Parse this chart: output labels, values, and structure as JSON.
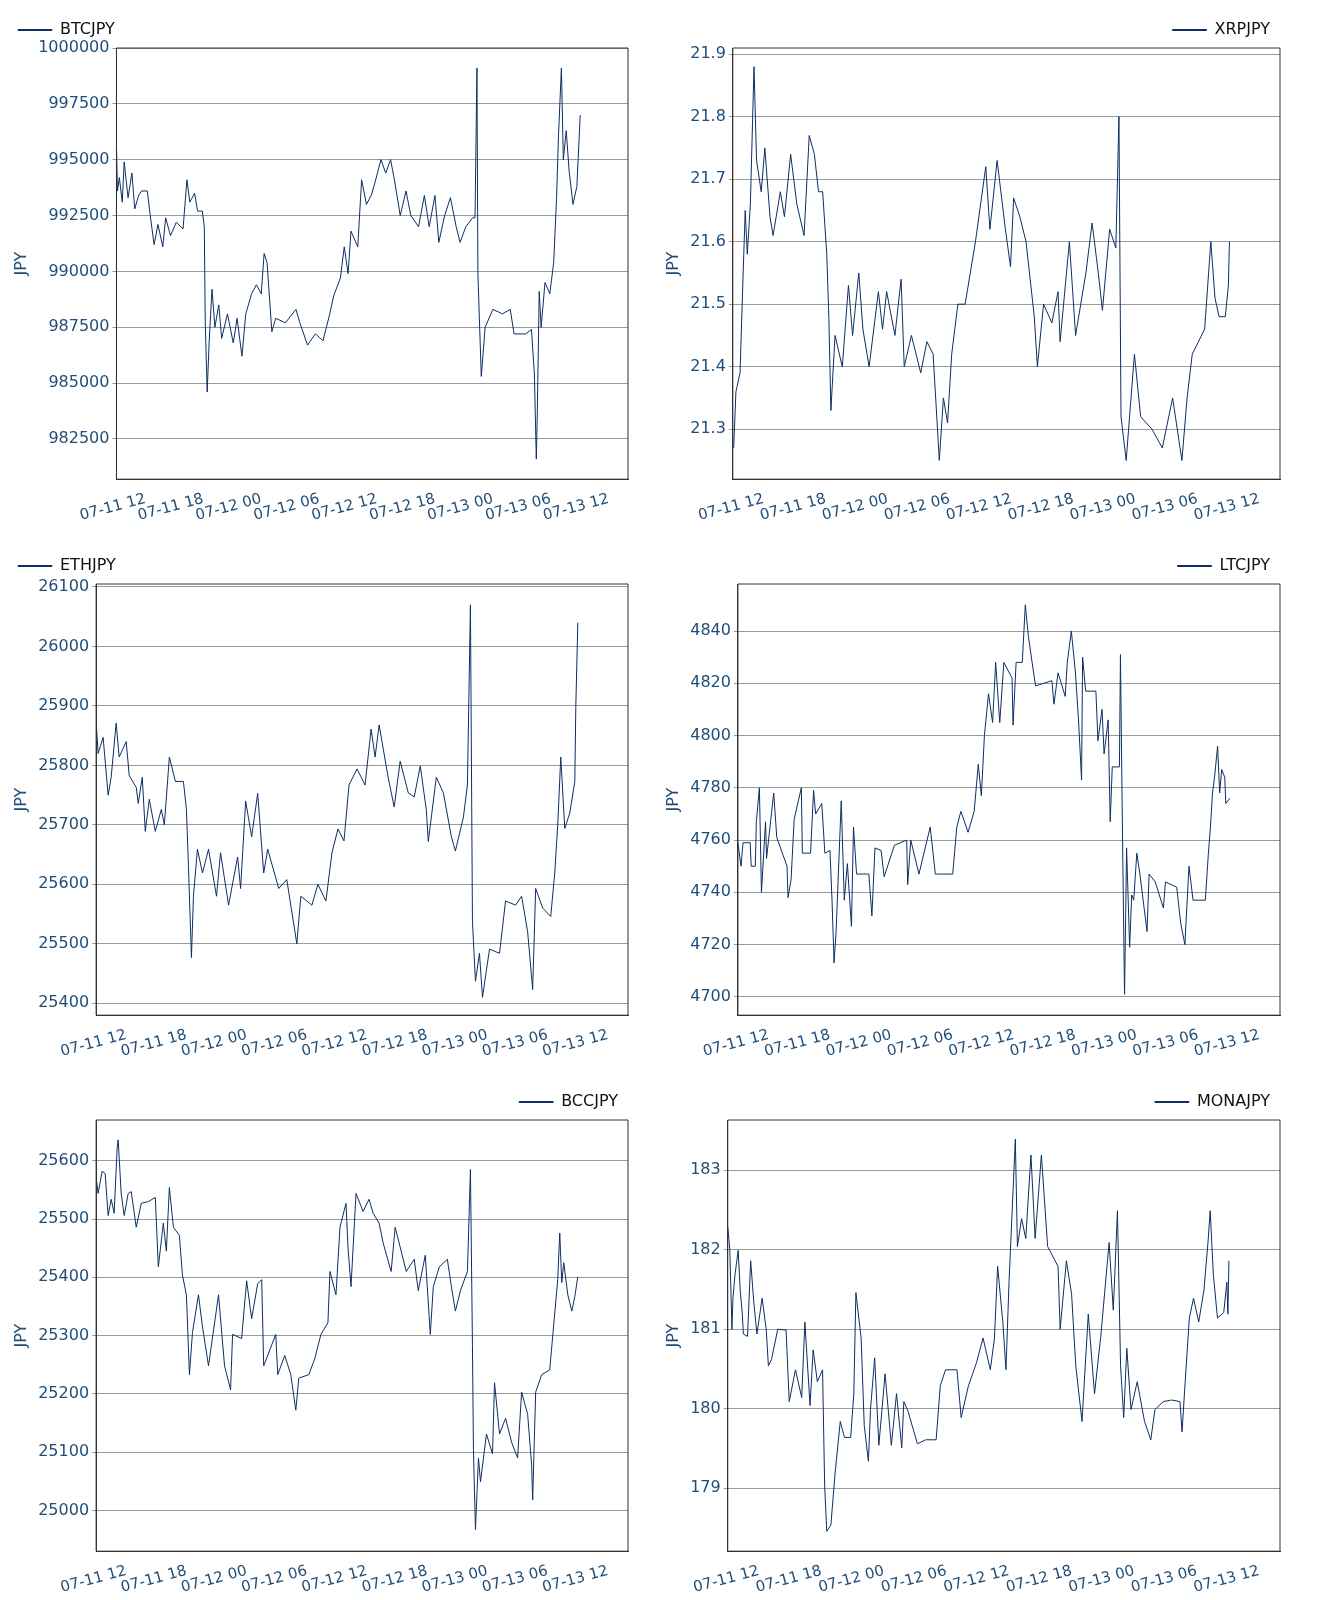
{
  "chart_data": [
    {
      "type": "line",
      "ylabel": "JPY",
      "xlim": [
        "--07-11T09:00",
        "--07-13T14:00"
      ],
      "xticks": [
        {
          "value": "--07-11T12:00",
          "label": "07-11 12"
        },
        {
          "value": "--07-11T18:00",
          "label": "07-11 18"
        },
        {
          "value": "--07-12T00:00",
          "label": "07-12 00"
        },
        {
          "value": "--07-12T06:00",
          "label": "07-12 06"
        },
        {
          "value": "--07-12T12:00",
          "label": "07-12 12"
        },
        {
          "value": "--07-12T18:00",
          "label": "07-12 18"
        },
        {
          "value": "--07-13T00:00",
          "label": "07-13 00"
        },
        {
          "value": "--07-13T06:00",
          "label": "07-13 06"
        },
        {
          "value": "--07-13T12:00",
          "label": "07-13 12"
        }
      ],
      "ylim": [
        980700,
        1000000
      ],
      "yticks": [
        982500,
        985000,
        987500,
        990000,
        992500,
        995000,
        997500,
        1000000
      ],
      "grid": "y",
      "legend": "top left",
      "x": [
        "--07-11T09:00",
        "--07-11T09:06",
        "--07-11T09:18",
        "--07-11T09:36",
        "--07-11T09:48",
        "--07-11T10:12",
        "--07-11T10:36",
        "--07-11T10:54",
        "--07-11T11:18",
        "--07-11T11:36",
        "--07-11T12:12",
        "--07-11T12:30",
        "--07-11T12:54",
        "--07-11T13:18",
        "--07-11T13:48",
        "--07-11T14:06",
        "--07-11T14:36",
        "--07-11T15:12",
        "--07-11T15:54",
        "--07-11T16:18",
        "--07-11T16:36",
        "--07-11T17:06",
        "--07-11T17:24",
        "--07-11T17:54",
        "--07-11T18:06",
        "--07-11T18:12",
        "--07-11T18:24",
        "--07-11T18:36",
        "--07-11T18:54",
        "--07-11T19:12",
        "--07-11T19:36",
        "--07-11T19:54",
        "--07-11T20:30",
        "--07-11T21:06",
        "--07-11T21:30",
        "--07-11T22:00",
        "--07-11T22:24",
        "--07-11T23:00",
        "--07-11T23:30",
        "--07-12T00:00",
        "--07-12T00:18",
        "--07-12T00:36",
        "--07-12T01:06",
        "--07-12T01:30",
        "--07-12T02:30",
        "--07-12T03:36",
        "--07-12T04:00",
        "--07-12T04:48",
        "--07-12T05:36",
        "--07-12T06:24",
        "--07-12T07:06",
        "--07-12T07:30",
        "--07-12T08:12",
        "--07-12T08:36",
        "--07-12T09:00",
        "--07-12T09:18",
        "--07-12T10:00",
        "--07-12T10:24",
        "--07-12T10:54",
        "--07-12T11:24",
        "--07-12T11:48",
        "--07-12T12:24",
        "--07-12T12:54",
        "--07-12T13:24",
        "--07-12T13:48",
        "--07-12T14:24",
        "--07-12T15:00",
        "--07-12T15:30",
        "--07-12T16:18",
        "--07-12T16:54",
        "--07-12T17:24",
        "--07-12T18:00",
        "--07-12T18:24",
        "--07-12T19:00",
        "--07-12T19:36",
        "--07-12T20:12",
        "--07-12T20:36",
        "--07-12T21:12",
        "--07-12T21:54",
        "--07-12T22:09",
        "--07-12T22:21",
        "--07-12T22:27",
        "--07-12T22:36",
        "--07-12T22:48",
        "--07-12T23:12",
        "--07-13T00:00",
        "--07-13T01:00",
        "--07-13T01:48",
        "--07-13T02:12",
        "--07-13T03:24",
        "--07-13T04:00",
        "--07-13T04:18",
        "--07-13T04:30",
        "--07-13T04:36",
        "--07-13T04:48",
        "--07-13T05:00",
        "--07-13T05:24",
        "--07-13T05:54",
        "--07-13T06:18",
        "--07-13T06:36",
        "--07-13T06:48",
        "--07-13T07:06",
        "--07-13T07:18",
        "--07-13T07:36",
        "--07-13T07:54",
        "--07-13T08:18",
        "--07-13T08:42",
        "--07-13T09:03"
      ],
      "series": [
        {
          "name": "BTCJPY",
          "color": "#0d2f63",
          "values": [
            995700,
            993600,
            994200,
            993100,
            994900,
            993300,
            994400,
            992800,
            993400,
            993600,
            993600,
            992500,
            991200,
            992100,
            991100,
            992400,
            991600,
            992200,
            991900,
            994100,
            993100,
            993500,
            992700,
            992700,
            992000,
            987700,
            984600,
            986800,
            989200,
            987500,
            988500,
            987000,
            988100,
            986800,
            987900,
            986200,
            988100,
            989000,
            989400,
            989000,
            990800,
            990400,
            987300,
            987900,
            987700,
            988300,
            987700,
            986700,
            987200,
            986900,
            988100,
            988900,
            989700,
            991100,
            989900,
            991800,
            991100,
            994100,
            993000,
            993400,
            994000,
            995000,
            994400,
            995000,
            994100,
            992500,
            993600,
            992500,
            992000,
            993400,
            992000,
            993400,
            991300,
            992500,
            993300,
            992000,
            991300,
            992000,
            992400,
            992400,
            999100,
            989900,
            987900,
            985300,
            987500,
            988300,
            988100,
            988300,
            987200,
            987200,
            987400,
            985400,
            981600,
            983600,
            989100,
            987500,
            989500,
            989000,
            990400,
            993300,
            996100,
            999100,
            995000,
            996300,
            994500,
            993000,
            993800,
            997000
          ]
        }
      ]
    },
    {
      "type": "line",
      "ylabel": "JPY",
      "xlim": [
        "--07-11T09:00",
        "--07-13T14:00"
      ],
      "xticks": [
        {
          "value": "--07-11T12:00",
          "label": "07-11 12"
        },
        {
          "value": "--07-11T18:00",
          "label": "07-11 18"
        },
        {
          "value": "--07-12T00:00",
          "label": "07-12 00"
        },
        {
          "value": "--07-12T06:00",
          "label": "07-12 06"
        },
        {
          "value": "--07-12T12:00",
          "label": "07-12 12"
        },
        {
          "value": "--07-12T18:00",
          "label": "07-12 18"
        },
        {
          "value": "--07-13T00:00",
          "label": "07-13 00"
        },
        {
          "value": "--07-13T06:00",
          "label": "07-13 06"
        },
        {
          "value": "--07-13T12:00",
          "label": "07-13 12"
        }
      ],
      "ylim": [
        21.22,
        21.91
      ],
      "yticks": [
        21.3,
        21.4,
        21.5,
        21.6,
        21.7,
        21.8,
        21.9
      ],
      "grid": "y",
      "legend": "top right",
      "x": [
        "--07-11T09:05",
        "--07-11T09:18",
        "--07-11T09:42",
        "--07-11T10:00",
        "--07-11T10:12",
        "--07-11T10:24",
        "--07-11T10:42",
        "--07-11T11:03",
        "--07-11T11:18",
        "--07-11T11:45",
        "--07-11T12:06",
        "--07-11T12:36",
        "--07-11T12:54",
        "--07-11T13:36",
        "--07-11T14:00",
        "--07-11T14:36",
        "--07-11T15:12",
        "--07-11T15:54",
        "--07-11T16:24",
        "--07-11T16:54",
        "--07-11T17:18",
        "--07-11T17:42",
        "--07-11T18:06",
        "--07-11T18:18",
        "--07-11T18:30",
        "--07-11T18:54",
        "--07-11T19:36",
        "--07-11T20:12",
        "--07-11T20:36",
        "--07-11T21:12",
        "--07-11T21:36",
        "--07-11T22:12",
        "--07-11T23:06",
        "--07-11T23:30",
        "--07-11T23:54",
        "--07-12T00:42",
        "--07-12T01:18",
        "--07-12T01:36",
        "--07-12T02:18",
        "--07-12T03:12",
        "--07-12T03:48",
        "--07-12T04:24",
        "--07-12T05:00",
        "--07-12T05:24",
        "--07-12T05:48",
        "--07-12T06:12",
        "--07-12T06:48",
        "--07-12T07:30",
        "--07-12T08:30",
        "--07-12T09:30",
        "--07-12T09:54",
        "--07-12T10:36",
        "--07-12T11:24",
        "--07-12T11:54",
        "--07-12T12:12",
        "--07-12T12:48",
        "--07-12T13:24",
        "--07-12T14:12",
        "--07-12T14:30",
        "--07-12T15:06",
        "--07-12T15:54",
        "--07-12T16:30",
        "--07-12T16:42",
        "--07-12T17:36",
        "--07-12T18:12",
        "--07-12T19:12",
        "--07-12T19:48",
        "--07-12T20:24",
        "--07-12T20:48",
        "--07-12T21:30",
        "--07-12T22:06",
        "--07-12T22:24",
        "--07-12T22:36",
        "--07-12T23:06",
        "--07-12T23:54",
        "--07-13T00:30",
        "--07-13T01:36",
        "--07-13T02:36",
        "--07-13T03:36",
        "--07-13T04:30",
        "--07-13T05:00",
        "--07-13T05:30",
        "--07-13T06:42",
        "--07-13T07:18",
        "--07-13T07:42",
        "--07-13T08:06",
        "--07-13T08:42",
        "--07-13T09:00",
        "--07-13T09:06"
      ],
      "series": [
        {
          "name": "XRPJPY",
          "color": "#0d2f63",
          "values": [
            21.27,
            21.36,
            21.39,
            21.55,
            21.65,
            21.58,
            21.66,
            21.88,
            21.73,
            21.68,
            21.75,
            21.64,
            21.61,
            21.68,
            21.64,
            21.74,
            21.66,
            21.61,
            21.77,
            21.74,
            21.68,
            21.68,
            21.58,
            21.48,
            21.33,
            21.45,
            21.4,
            21.53,
            21.45,
            21.55,
            21.46,
            21.4,
            21.52,
            21.46,
            21.52,
            21.45,
            21.54,
            21.4,
            21.45,
            21.39,
            21.44,
            21.42,
            21.25,
            21.35,
            21.31,
            21.42,
            21.5,
            21.5,
            21.6,
            21.72,
            21.62,
            21.73,
            21.62,
            21.56,
            21.67,
            21.64,
            21.6,
            21.48,
            21.4,
            21.5,
            21.47,
            21.52,
            21.44,
            21.6,
            21.45,
            21.55,
            21.63,
            21.55,
            21.49,
            21.62,
            21.59,
            21.8,
            21.32,
            21.25,
            21.42,
            21.32,
            21.3,
            21.27,
            21.35,
            21.25,
            21.35,
            21.42,
            21.46,
            21.6,
            21.51,
            21.48,
            21.48,
            21.53,
            21.6
          ]
        }
      ]
    },
    {
      "type": "line",
      "ylabel": "JPY",
      "xlim": [
        "--07-11T09:00",
        "--07-13T14:00"
      ],
      "xticks": [
        {
          "value": "--07-11T12:00",
          "label": "07-11 12"
        },
        {
          "value": "--07-11T18:00",
          "label": "07-11 18"
        },
        {
          "value": "--07-12T00:00",
          "label": "07-12 00"
        },
        {
          "value": "--07-12T06:00",
          "label": "07-12 06"
        },
        {
          "value": "--07-12T12:00",
          "label": "07-12 12"
        },
        {
          "value": "--07-12T18:00",
          "label": "07-12 18"
        },
        {
          "value": "--07-13T00:00",
          "label": "07-13 00"
        },
        {
          "value": "--07-13T06:00",
          "label": "07-13 06"
        },
        {
          "value": "--07-13T12:00",
          "label": "07-13 12"
        }
      ],
      "ylim": [
        25380,
        26105
      ],
      "yticks": [
        25400,
        25500,
        25600,
        25700,
        25800,
        25900,
        26000,
        26100
      ],
      "grid": "y",
      "legend": "top left",
      "x": [
        "--07-11T09:00",
        "--07-11T09:12",
        "--07-11T09:42",
        "--07-11T10:12",
        "--07-11T10:30",
        "--07-11T11:00",
        "--07-11T11:18",
        "--07-11T12:00",
        "--07-11T12:18",
        "--07-11T13:00",
        "--07-11T13:12",
        "--07-11T13:36",
        "--07-11T13:54",
        "--07-11T14:18",
        "--07-11T14:54",
        "--07-11T15:30",
        "--07-11T15:48",
        "--07-11T16:18",
        "--07-11T16:54",
        "--07-11T17:42",
        "--07-11T18:00",
        "--07-11T18:12",
        "--07-11T18:30",
        "--07-11T18:42",
        "--07-11T19:06",
        "--07-11T19:36",
        "--07-11T20:12",
        "--07-11T21:00",
        "--07-11T21:24",
        "--07-11T22:12",
        "--07-11T23:06",
        "--07-11T23:24",
        "--07-11T23:54",
        "--07-12T00:30",
        "--07-12T01:06",
        "--07-12T01:42",
        "--07-12T02:06",
        "--07-12T03:12",
        "--07-12T04:00",
        "--07-12T05:00",
        "--07-12T05:24",
        "--07-12T06:30",
        "--07-12T07:06",
        "--07-12T07:54",
        "--07-12T08:30",
        "--07-12T09:06",
        "--07-12T09:42",
        "--07-12T10:12",
        "--07-12T11:00",
        "--07-12T11:48",
        "--07-12T12:24",
        "--07-12T12:48",
        "--07-12T13:12",
        "--07-12T14:06",
        "--07-12T14:42",
        "--07-12T15:18",
        "--07-12T16:06",
        "--07-12T16:42",
        "--07-12T17:18",
        "--07-12T17:54",
        "--07-12T18:06",
        "--07-12T18:54",
        "--07-12T19:36",
        "--07-12T20:24",
        "--07-12T20:48",
        "--07-12T21:36",
        "--07-12T22:00",
        "--07-12T22:18",
        "--07-12T22:30",
        "--07-12T22:48",
        "--07-12T23:12",
        "--07-12T23:30",
        "--07-13T00:12",
        "--07-13T01:12",
        "--07-13T01:48",
        "--07-13T02:48",
        "--07-13T03:24",
        "--07-13T04:00",
        "--07-13T04:30",
        "--07-13T04:48",
        "--07-13T05:30",
        "--07-13T06:18",
        "--07-13T06:42",
        "--07-13T07:00",
        "--07-13T07:18",
        "--07-13T07:42",
        "--07-13T08:12",
        "--07-13T08:42",
        "--07-13T08:48",
        "--07-13T09:00"
      ],
      "series": [
        {
          "name": "ETHJPY",
          "color": "#0d2f63",
          "values": [
            25875,
            25820,
            25847,
            25750,
            25780,
            25871,
            25814,
            25840,
            25783,
            25763,
            25736,
            25780,
            25689,
            25743,
            25689,
            25726,
            25700,
            25814,
            25773,
            25773,
            25726,
            25632,
            25477,
            25580,
            25659,
            25619,
            25659,
            25580,
            25653,
            25565,
            25646,
            25593,
            25740,
            25680,
            25753,
            25619,
            25659,
            25593,
            25608,
            25500,
            25580,
            25565,
            25600,
            25572,
            25653,
            25693,
            25673,
            25767,
            25794,
            25767,
            25861,
            25814,
            25868,
            25780,
            25730,
            25807,
            25754,
            25747,
            25799,
            25726,
            25672,
            25780,
            25754,
            25680,
            25656,
            25713,
            25767,
            26070,
            25538,
            25437,
            25484,
            25410,
            25491,
            25484,
            25572,
            25565,
            25580,
            25520,
            25423,
            25593,
            25560,
            25546,
            25619,
            25700,
            25814,
            25694,
            25720,
            25773,
            25900,
            26040
          ]
        }
      ]
    },
    {
      "type": "line",
      "ylabel": "JPY",
      "xlim": [
        "--07-11T09:00",
        "--07-13T14:00"
      ],
      "xticks": [
        {
          "value": "--07-11T12:00",
          "label": "07-11 12"
        },
        {
          "value": "--07-11T18:00",
          "label": "07-11 18"
        },
        {
          "value": "--07-12T00:00",
          "label": "07-12 00"
        },
        {
          "value": "--07-12T06:00",
          "label": "07-12 06"
        },
        {
          "value": "--07-12T12:00",
          "label": "07-12 12"
        },
        {
          "value": "--07-12T18:00",
          "label": "07-12 18"
        },
        {
          "value": "--07-13T00:00",
          "label": "07-13 00"
        },
        {
          "value": "--07-13T06:00",
          "label": "07-13 06"
        },
        {
          "value": "--07-13T12:00",
          "label": "07-13 12"
        }
      ],
      "ylim": [
        4693,
        4858
      ],
      "yticks": [
        4700,
        4720,
        4740,
        4760,
        4780,
        4800,
        4820,
        4840
      ],
      "grid": "y",
      "legend": "top right",
      "x": [
        "--07-11T09:00",
        "--07-11T09:18",
        "--07-11T09:30",
        "--07-11T10:12",
        "--07-11T10:18",
        "--07-11T10:42",
        "--07-11T10:48",
        "--07-11T11:06",
        "--07-11T11:18",
        "--07-11T11:42",
        "--07-11T11:48",
        "--07-11T12:30",
        "--07-11T12:48",
        "--07-11T13:48",
        "--07-11T13:54",
        "--07-11T14:12",
        "--07-11T14:30",
        "--07-11T15:12",
        "--07-11T15:18",
        "--07-11T16:06",
        "--07-11T16:24",
        "--07-11T16:36",
        "--07-11T17:12",
        "--07-11T17:30",
        "--07-11T18:00",
        "--07-11T18:12",
        "--07-11T18:24",
        "--07-11T18:36",
        "--07-11T19:06",
        "--07-11T19:24",
        "--07-11T19:42",
        "--07-11T20:06",
        "--07-11T20:18",
        "--07-11T20:36",
        "--07-11T21:48",
        "--07-11T22:06",
        "--07-11T22:24",
        "--07-11T23:00",
        "--07-11T23:18",
        "--07-12T00:18",
        "--07-12T01:30",
        "--07-12T01:36",
        "--07-12T01:54",
        "--07-12T02:42",
        "--07-12T03:48",
        "--07-12T04:18",
        "--07-12T04:54",
        "--07-12T06:00",
        "--07-12T06:12",
        "--07-12T06:24",
        "--07-12T06:48",
        "--07-12T07:30",
        "--07-12T08:06",
        "--07-12T08:30",
        "--07-12T08:48",
        "--07-12T09:06",
        "--07-12T09:30",
        "--07-12T09:54",
        "--07-12T10:12",
        "--07-12T10:36",
        "--07-12T11:00",
        "--07-12T11:48",
        "--07-12T11:54",
        "--07-12T12:12",
        "--07-12T12:48",
        "--07-12T13:06",
        "--07-12T13:24",
        "--07-12T13:48",
        "--07-12T14:06",
        "--07-12T15:42",
        "--07-12T15:54",
        "--07-12T16:18",
        "--07-12T17:00",
        "--07-12T17:12",
        "--07-12T17:36",
        "--07-12T18:00",
        "--07-12T18:18",
        "--07-12T18:36",
        "--07-12T18:42",
        "--07-12T19:00",
        "--07-12T20:00",
        "--07-12T20:12",
        "--07-12T20:36",
        "--07-12T20:48",
        "--07-12T21:12",
        "--07-12T21:24",
        "--07-12T21:36",
        "--07-12T22:18",
        "--07-12T22:24",
        "--07-12T22:36",
        "--07-12T22:48",
        "--07-12T23:00",
        "--07-12T23:18",
        "--07-12T23:30",
        "--07-12T23:42",
        "--07-13T00:00",
        "--07-13T00:18",
        "--07-13T01:00",
        "--07-13T01:12",
        "--07-13T01:48",
        "--07-13T02:36",
        "--07-13T02:48",
        "--07-13T03:54",
        "--07-13T04:18",
        "--07-13T04:42",
        "--07-13T05:06",
        "--07-13T05:30",
        "--07-13T06:42",
        "--07-13T07:00",
        "--07-13T07:12",
        "--07-13T07:24",
        "--07-13T07:36",
        "--07-13T07:54",
        "--07-13T08:06",
        "--07-13T08:18",
        "--07-13T08:36",
        "--07-13T08:42",
        "--07-13T09:06"
      ],
      "series": [
        {
          "name": "LTCJPY",
          "color": "#0d2f63",
          "values": [
            4759,
            4750,
            4759,
            4759,
            4750,
            4750,
            4767,
            4780,
            4740,
            4767,
            4753,
            4778,
            4761,
            4750,
            4738,
            4745,
            4768,
            4780,
            4755,
            4755,
            4779,
            4770,
            4774,
            4755,
            4756,
            4737,
            4713,
            4725,
            4775,
            4737,
            4751,
            4727,
            4765,
            4747,
            4747,
            4731,
            4757,
            4756,
            4746,
            4758,
            4760,
            4743,
            4760,
            4747,
            4765,
            4747,
            4747,
            4747,
            4756,
            4765,
            4771,
            4763,
            4771,
            4789,
            4777,
            4800,
            4816,
            4805,
            4828,
            4805,
            4828,
            4822,
            4804,
            4828,
            4828,
            4850,
            4838,
            4827,
            4819,
            4821,
            4812,
            4824,
            4815,
            4828,
            4840,
            4824,
            4806,
            4783,
            4830,
            4817,
            4817,
            4798,
            4810,
            4793,
            4806,
            4767,
            4788,
            4788,
            4831,
            4762,
            4701,
            4757,
            4719,
            4739,
            4737,
            4755,
            4747,
            4725,
            4747,
            4744,
            4734,
            4744,
            4742,
            4728,
            4720,
            4750,
            4737,
            4737,
            4755,
            4765,
            4778,
            4784,
            4796,
            4778,
            4787,
            4784,
            4774,
            4776
          ]
        }
      ]
    },
    {
      "type": "line",
      "ylabel": "JPY",
      "xlim": [
        "--07-11T09:00",
        "--07-13T14:00"
      ],
      "xticks": [
        {
          "value": "--07-11T12:00",
          "label": "07-11 12"
        },
        {
          "value": "--07-11T18:00",
          "label": "07-11 18"
        },
        {
          "value": "--07-12T00:00",
          "label": "07-12 00"
        },
        {
          "value": "--07-12T06:00",
          "label": "07-12 06"
        },
        {
          "value": "--07-12T12:00",
          "label": "07-12 12"
        },
        {
          "value": "--07-12T18:00",
          "label": "07-12 18"
        },
        {
          "value": "--07-13T00:00",
          "label": "07-13 00"
        },
        {
          "value": "--07-13T06:00",
          "label": "07-13 06"
        },
        {
          "value": "--07-13T12:00",
          "label": "07-13 12"
        }
      ],
      "ylim": [
        24930,
        25670
      ],
      "yticks": [
        25000,
        25100,
        25200,
        25300,
        25400,
        25500,
        25600
      ],
      "grid": "y",
      "legend": "top right",
      "x": [
        "--07-11T09:00",
        "--07-11T09:12",
        "--07-11T09:36",
        "--07-11T09:54",
        "--07-11T10:12",
        "--07-11T10:30",
        "--07-11T10:48",
        "--07-11T11:06",
        "--07-11T11:12",
        "--07-11T11:30",
        "--07-11T11:48",
        "--07-11T12:12",
        "--07-11T12:30",
        "--07-11T13:00",
        "--07-11T13:30",
        "--07-11T14:12",
        "--07-11T14:54",
        "--07-11T15:12",
        "--07-11T15:42",
        "--07-11T16:00",
        "--07-11T16:18",
        "--07-11T16:42",
        "--07-11T17:18",
        "--07-11T17:36",
        "--07-11T18:00",
        "--07-11T18:18",
        "--07-11T18:36",
        "--07-11T19:12",
        "--07-11T19:36",
        "--07-11T20:12",
        "--07-11T21:12",
        "--07-11T21:48",
        "--07-11T22:24",
        "--07-11T22:36",
        "--07-11T23:30",
        "--07-12T00:00",
        "--07-12T00:30",
        "--07-12T01:06",
        "--07-12T01:30",
        "--07-12T01:42",
        "--07-12T02:54",
        "--07-12T03:06",
        "--07-12T03:48",
        "--07-12T04:24",
        "--07-12T04:54",
        "--07-12T05:12",
        "--07-12T06:12",
        "--07-12T06:48",
        "--07-12T07:24",
        "--07-12T08:06",
        "--07-12T08:18",
        "--07-12T08:54",
        "--07-12T09:18",
        "--07-12T09:54",
        "--07-12T10:06",
        "--07-12T10:24",
        "--07-12T10:54",
        "--07-12T11:36",
        "--07-12T12:12",
        "--07-12T12:36",
        "--07-12T13:12",
        "--07-12T13:36",
        "--07-12T14:24",
        "--07-12T14:48",
        "--07-12T15:30",
        "--07-12T15:54",
        "--07-12T16:42",
        "--07-12T17:06",
        "--07-12T17:48",
        "--07-12T18:18",
        "--07-12T18:36",
        "--07-12T19:12",
        "--07-12T20:00",
        "--07-12T20:24",
        "--07-12T20:48",
        "--07-12T21:18",
        "--07-12T22:00",
        "--07-12T22:18",
        "--07-12T22:30",
        "--07-12T22:36",
        "--07-12T22:48",
        "--07-12T23:06",
        "--07-12T23:18",
        "--07-12T23:54",
        "--07-13T00:30",
        "--07-13T00:42",
        "--07-13T01:12",
        "--07-13T01:48",
        "--07-13T02:24",
        "--07-13T03:00",
        "--07-13T03:24",
        "--07-13T04:00",
        "--07-13T04:24",
        "--07-13T04:30",
        "--07-13T04:48",
        "--07-13T05:24",
        "--07-13T06:12",
        "--07-13T06:36",
        "--07-13T07:00",
        "--07-13T07:12",
        "--07-13T07:24",
        "--07-13T07:36",
        "--07-13T08:00",
        "--07-13T08:24",
        "--07-13T08:42",
        "--07-13T09:00"
      ],
      "series": [
        {
          "name": "BCCJPY",
          "color": "#0d2f63",
          "values": [
            25571,
            25544,
            25582,
            25578,
            25506,
            25534,
            25510,
            25623,
            25636,
            25544,
            25506,
            25544,
            25547,
            25486,
            25527,
            25530,
            25537,
            25418,
            25493,
            25445,
            25554,
            25486,
            25472,
            25404,
            25370,
            25233,
            25305,
            25370,
            25315,
            25248,
            25370,
            25248,
            25207,
            25302,
            25295,
            25394,
            25329,
            25389,
            25396,
            25248,
            25302,
            25233,
            25266,
            25233,
            25172,
            25227,
            25233,
            25261,
            25302,
            25322,
            25410,
            25370,
            25486,
            25527,
            25452,
            25384,
            25544,
            25513,
            25534,
            25510,
            25493,
            25459,
            25410,
            25486,
            25438,
            25410,
            25431,
            25377,
            25438,
            25302,
            25384,
            25418,
            25431,
            25384,
            25342,
            25377,
            25410,
            25585,
            25283,
            25104,
            24967,
            25090,
            25049,
            25131,
            25097,
            25219,
            25131,
            25158,
            25117,
            25090,
            25203,
            25165,
            25077,
            25018,
            25203,
            25233,
            25241,
            25319,
            25396,
            25476,
            25391,
            25425,
            25370,
            25342,
            25367,
            25401
          ]
        }
      ]
    },
    {
      "type": "line",
      "ylabel": "JPY",
      "xlim": [
        "--07-11T09:00",
        "--07-13T14:00"
      ],
      "xticks": [
        {
          "value": "--07-11T12:00",
          "label": "07-11 12"
        },
        {
          "value": "--07-11T18:00",
          "label": "07-11 18"
        },
        {
          "value": "--07-12T00:00",
          "label": "07-12 00"
        },
        {
          "value": "--07-12T06:00",
          "label": "07-12 06"
        },
        {
          "value": "--07-12T12:00",
          "label": "07-12 12"
        },
        {
          "value": "--07-12T18:00",
          "label": "07-12 18"
        },
        {
          "value": "--07-13T00:00",
          "label": "07-13 00"
        },
        {
          "value": "--07-13T06:00",
          "label": "07-13 06"
        },
        {
          "value": "--07-13T12:00",
          "label": "07-13 12"
        }
      ],
      "ylim": [
        178.21,
        183.63
      ],
      "yticks": [
        179,
        180,
        181,
        182,
        183
      ],
      "grid": "y",
      "legend": "top right",
      "x": [
        "--07-11T09:00",
        "--07-11T09:12",
        "--07-11T09:24",
        "--07-11T09:30",
        "--07-11T09:42",
        "--07-11T10:00",
        "--07-11T10:12",
        "--07-11T10:24",
        "--07-11T10:30",
        "--07-11T10:54",
        "--07-11T11:12",
        "--07-11T11:30",
        "--07-11T11:48",
        "--07-11T12:18",
        "--07-11T12:42",
        "--07-11T12:54",
        "--07-11T13:12",
        "--07-11T13:48",
        "--07-11T14:36",
        "--07-11T14:54",
        "--07-11T15:30",
        "--07-11T16:06",
        "--07-11T16:24",
        "--07-11T16:54",
        "--07-11T17:12",
        "--07-11T17:36",
        "--07-11T18:06",
        "--07-11T18:18",
        "--07-11T18:30",
        "--07-11T18:54",
        "--07-11T19:18",
        "--07-11T19:48",
        "--07-11T20:12",
        "--07-11T20:48",
        "--07-11T21:06",
        "--07-11T21:18",
        "--07-11T21:48",
        "--07-11T22:06",
        "--07-11T22:30",
        "--07-11T22:42",
        "--07-11T23:06",
        "--07-11T23:30",
        "--07-12T00:06",
        "--07-12T00:42",
        "--07-12T01:12",
        "--07-12T01:42",
        "--07-12T01:54",
        "--07-12T02:18",
        "--07-12T03:12",
        "--07-12T04:00",
        "--07-12T05:00",
        "--07-12T05:24",
        "--07-12T05:54",
        "--07-12T07:00",
        "--07-12T07:24",
        "--07-12T08:06",
        "--07-12T08:54",
        "--07-12T09:30",
        "--07-12T10:12",
        "--07-12T10:36",
        "--07-12T10:54",
        "--07-12T11:24",
        "--07-12T11:42",
        "--07-12T12:00",
        "--07-12T12:36",
        "--07-12T12:48",
        "--07-12T13:12",
        "--07-12T13:36",
        "--07-12T14:06",
        "--07-12T14:30",
        "--07-12T15:06",
        "--07-12T15:42",
        "--07-12T16:42",
        "--07-12T16:54",
        "--07-12T17:30",
        "--07-12T18:00",
        "--07-12T18:24",
        "--07-12T19:00",
        "--07-12T19:36",
        "--07-12T20:12",
        "--07-12T20:48",
        "--07-12T21:36",
        "--07-12T22:00",
        "--07-12T22:24",
        "--07-12T22:42",
        "--07-12T23:00",
        "--07-12T23:18",
        "--07-12T23:42",
        "--07-13T00:18",
        "--07-13T01:00",
        "--07-13T01:36",
        "--07-13T02:00",
        "--07-13T02:48",
        "--07-13T03:36",
        "--07-13T04:24",
        "--07-13T04:36",
        "--07-13T04:54",
        "--07-13T05:18",
        "--07-13T05:42",
        "--07-13T06:12",
        "--07-13T06:42",
        "--07-13T07:06",
        "--07-13T07:18",
        "--07-13T07:36",
        "--07-13T08:00",
        "--07-13T08:36",
        "--07-13T08:54",
        "--07-13T09:00",
        "--07-13T09:06"
      ],
      "series": [
        {
          "name": "MONAJPY",
          "color": "#0d2f63",
          "values": [
            182.29,
            182.0,
            181.0,
            181.39,
            181.69,
            181.99,
            181.49,
            181.19,
            180.94,
            180.91,
            181.86,
            181.34,
            180.94,
            181.39,
            180.99,
            180.54,
            180.62,
            181.0,
            180.99,
            180.09,
            180.49,
            180.14,
            181.09,
            180.04,
            180.74,
            180.34,
            180.49,
            179.04,
            178.46,
            178.54,
            179.19,
            179.84,
            179.64,
            179.64,
            180.19,
            181.46,
            180.89,
            179.79,
            179.34,
            179.99,
            180.64,
            179.54,
            180.44,
            179.54,
            180.19,
            179.51,
            180.09,
            179.97,
            179.56,
            179.61,
            179.61,
            180.29,
            180.49,
            180.49,
            179.89,
            180.29,
            180.59,
            180.89,
            180.49,
            180.89,
            181.79,
            181.09,
            180.49,
            181.61,
            183.39,
            182.04,
            182.39,
            182.14,
            183.19,
            182.14,
            183.19,
            182.04,
            181.79,
            181.0,
            181.86,
            181.44,
            180.54,
            179.84,
            181.19,
            180.19,
            180.91,
            182.09,
            181.24,
            182.49,
            180.54,
            179.89,
            180.76,
            179.99,
            180.34,
            179.84,
            179.61,
            179.99,
            180.09,
            180.11,
            180.09,
            179.71,
            180.34,
            181.14,
            181.39,
            181.09,
            181.49,
            182.11,
            182.49,
            181.69,
            181.14,
            181.21,
            181.59,
            181.19,
            181.86
          ]
        }
      ]
    }
  ]
}
